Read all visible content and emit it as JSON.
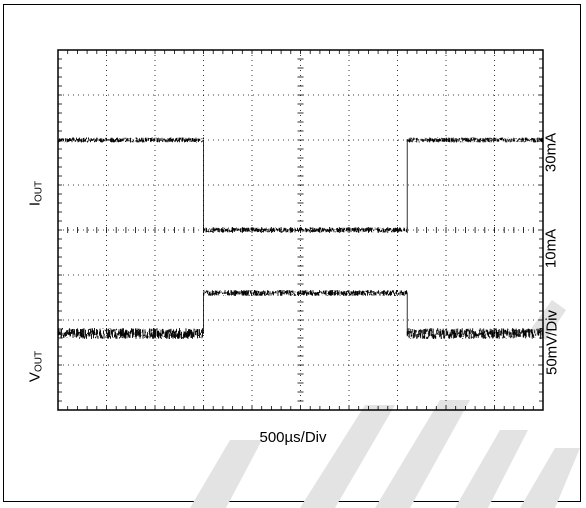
{
  "chart_data": {
    "type": "line",
    "title": "",
    "xlabel": "500µs/Div",
    "x_divisions": 10,
    "y_divisions": 8,
    "grid": true,
    "x_unit": "div",
    "series": [
      {
        "name": "IOUT",
        "segments": [
          {
            "x_start": 0,
            "x_end": 3,
            "level": "30mA"
          },
          {
            "x_start": 3,
            "x_end": 7.2,
            "level": "10mA"
          },
          {
            "x_start": 7.2,
            "x_end": 10,
            "level": "30mA"
          }
        ]
      },
      {
        "name": "VOUT",
        "segments": [
          {
            "x_start": 0,
            "x_end": 3,
            "level": "low"
          },
          {
            "x_start": 3,
            "x_end": 7.2,
            "level": "high"
          },
          {
            "x_start": 7.2,
            "x_end": 10,
            "level": "low"
          }
        ]
      }
    ]
  },
  "labels": {
    "xlabel": "500µs/Div",
    "i_main": "I",
    "i_sub": "OUT",
    "v_main": "V",
    "v_sub": "OUT",
    "level_30": "30mA",
    "level_10": "10mA",
    "v_scale": "50mV/Div"
  },
  "colors": {
    "trace": "#000000",
    "grid": "#000000",
    "watermark": "#d9d9d9"
  }
}
